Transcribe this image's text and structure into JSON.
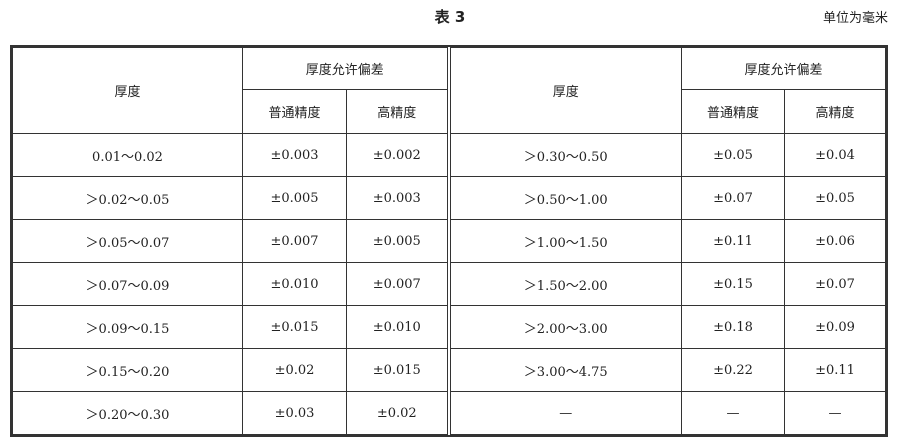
{
  "title": "表 3",
  "unit": "单位为毫米",
  "headers": {
    "thickness": "厚度",
    "tolerance": "厚度允许偏差",
    "normal": "普通精度",
    "high": "高精度"
  },
  "left_rows": [
    [
      "0.01～0.02",
      "±0.003",
      "±0.002"
    ],
    [
      "＞0.02～0.05",
      "±0.005",
      "±0.003"
    ],
    [
      "＞0.05～0.07",
      "±0.007",
      "±0.005"
    ],
    [
      "＞0.07～0.09",
      "±0.010",
      "±0.007"
    ],
    [
      "＞0.09～0.15",
      "±0.015",
      "±0.010"
    ],
    [
      "＞0.15～0.20",
      "±0.02",
      "±0.015"
    ],
    [
      "＞0.20～0.30",
      "±0.03",
      "±0.02"
    ]
  ],
  "right_rows": [
    [
      "＞0.30～0.50",
      "±0.05",
      "±0.04"
    ],
    [
      "＞0.50～1.00",
      "±0.07",
      "±0.05"
    ],
    [
      "＞1.00～1.50",
      "±0.11",
      "±0.06"
    ],
    [
      "＞1.50～2.00",
      "±0.15",
      "±0.07"
    ],
    [
      "＞2.00～3.00",
      "±0.18",
      "±0.09"
    ],
    [
      "＞3.00～4.75",
      "±0.22",
      "±0.11"
    ],
    [
      "—",
      "—",
      "—"
    ]
  ]
}
